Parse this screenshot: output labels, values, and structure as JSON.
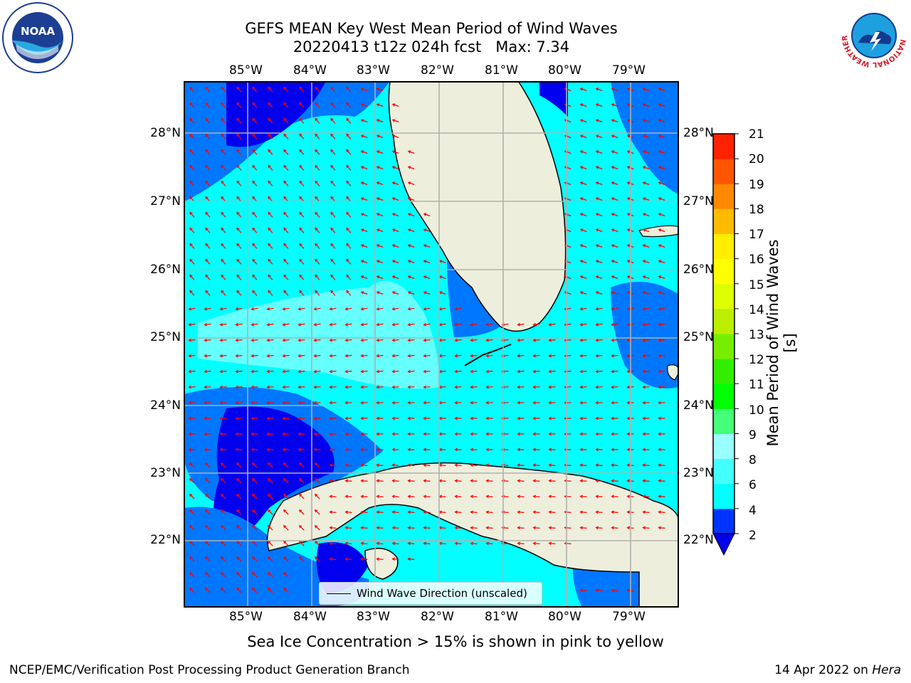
{
  "title": {
    "line1": "GEFS MEAN Key West Mean Period of Wind Waves",
    "line2": "20220413 t12z 024h fcst   Max: 7.34"
  },
  "map": {
    "lon_labels": [
      "85°W",
      "84°W",
      "83°W",
      "82°W",
      "81°W",
      "80°W",
      "79°W"
    ],
    "lat_labels": [
      "28°N",
      "27°N",
      "26°N",
      "25°N",
      "24°N",
      "23°N",
      "22°N"
    ],
    "legend_label": "Wind Wave Direction (unscaled)",
    "land_color": "#eeeedc",
    "arrow_color": "#ff0000"
  },
  "colorbar": {
    "label": "Mean Period of Wind Waves [s]",
    "ticks": [
      "2",
      "4",
      "6",
      "8",
      "9",
      "10",
      "11",
      "12",
      "13",
      "14",
      "15",
      "16",
      "17",
      "18",
      "19",
      "20",
      "21"
    ],
    "colors": [
      "#0033ff",
      "#00ffff",
      "#44ffff",
      "#99ffff",
      "#44ff77",
      "#00ff00",
      "#33ee00",
      "#77ee00",
      "#bbee00",
      "#ddff00",
      "#ffff00",
      "#ffee00",
      "#ffbb00",
      "#ff8800",
      "#ff5500",
      "#ff2200"
    ],
    "under_color": "#0000ee"
  },
  "logos": {
    "noaa_text": "NOAA",
    "nws_text": "NATIONAL WEATHER SERVICE"
  },
  "note": "Sea Ice Concentration > 15% is shown in pink to yellow",
  "footer": {
    "left": "NCEP/EMC/Verification Post Processing Product Generation Branch",
    "date": "14 Apr 2022 on",
    "machine": "Hera"
  }
}
